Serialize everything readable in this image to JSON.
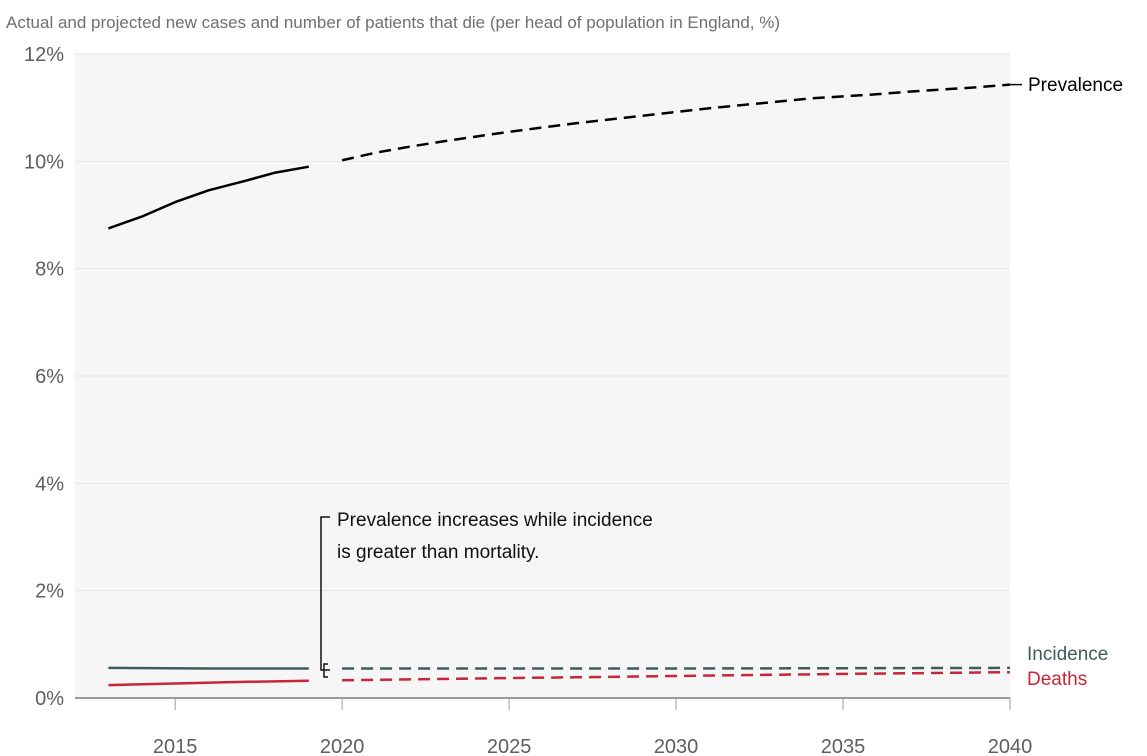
{
  "chart_data": {
    "type": "line",
    "title": "Actual and projected new cases and number of patients that die (per head of population in England, %)",
    "xlabel": "",
    "ylabel": "",
    "xlim": [
      2012,
      2040
    ],
    "ylim": [
      0,
      12
    ],
    "x_ticks": [
      2015,
      2020,
      2025,
      2030,
      2035,
      2040
    ],
    "y_ticks": [
      0,
      2,
      4,
      6,
      8,
      10,
      12
    ],
    "y_tick_labels": [
      "0%",
      "2%",
      "4%",
      "6%",
      "8%",
      "10%",
      "12%"
    ],
    "grid": true,
    "colors": {
      "prevalence": "#000000",
      "incidence": "#3d5c5a",
      "deaths": "#c4283a",
      "background": "#f6f6f6",
      "grid": "#e6e6e6",
      "axis": "#9a9a9a"
    },
    "series": [
      {
        "name": "Prevalence",
        "actual": {
          "x": [
            2013,
            2014,
            2015,
            2016,
            2017,
            2018,
            2019
          ],
          "y": [
            8.75,
            8.97,
            9.24,
            9.46,
            9.62,
            9.79,
            9.9
          ]
        },
        "projected": {
          "x": [
            2020,
            2021,
            2022,
            2023,
            2024,
            2025,
            2026,
            2027,
            2028,
            2029,
            2030,
            2031,
            2032,
            2033,
            2034,
            2035,
            2036,
            2037,
            2038,
            2039,
            2040
          ],
          "y": [
            10.02,
            10.16,
            10.27,
            10.37,
            10.46,
            10.55,
            10.63,
            10.71,
            10.78,
            10.85,
            10.92,
            10.99,
            11.05,
            11.11,
            11.17,
            11.21,
            11.25,
            11.3,
            11.34,
            11.38,
            11.43
          ]
        }
      },
      {
        "name": "Incidence",
        "actual": {
          "x": [
            2013,
            2016,
            2019
          ],
          "y": [
            0.56,
            0.55,
            0.55
          ]
        },
        "projected": {
          "x": [
            2020,
            2030,
            2040
          ],
          "y": [
            0.55,
            0.55,
            0.56
          ]
        }
      },
      {
        "name": "Deaths",
        "actual": {
          "x": [
            2013,
            2015,
            2017,
            2019
          ],
          "y": [
            0.24,
            0.27,
            0.3,
            0.32
          ]
        },
        "projected": {
          "x": [
            2020,
            2025,
            2030,
            2035,
            2040
          ],
          "y": [
            0.33,
            0.37,
            0.41,
            0.45,
            0.48
          ]
        }
      }
    ],
    "annotation": {
      "lines": [
        "Prevalence increases while incidence",
        "is greater than mortality."
      ]
    }
  }
}
